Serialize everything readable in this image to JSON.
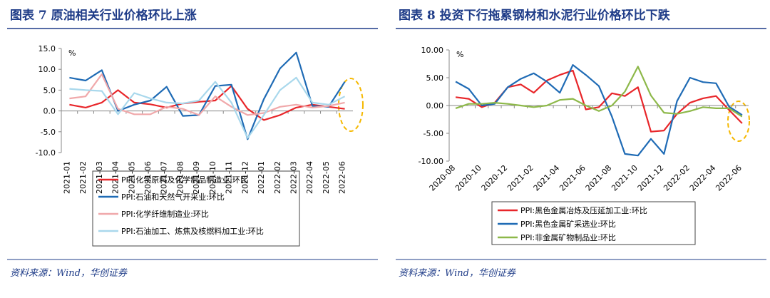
{
  "chart_data": [
    {
      "type": "line",
      "title": "图表 7   原油相关行业价格环比上涨",
      "source": "资料来源：Wind，华创证券",
      "unit": "%",
      "categories": [
        "2021-01",
        "2021-02",
        "2021-03",
        "2021-04",
        "2021-05",
        "2021-06",
        "2021-07",
        "2021-08",
        "2021-09",
        "2021-10",
        "2021-11",
        "2021-12",
        "2022-01",
        "2022-02",
        "2022-03",
        "2022-04",
        "2022-05",
        "2022-06"
      ],
      "ylim": [
        -10,
        15
      ],
      "yticks": [
        {
          "value": -10,
          "label": "-10.0"
        },
        {
          "value": -5,
          "label": "-5.0"
        },
        {
          "value": 0,
          "label": "0.0"
        },
        {
          "value": 5,
          "label": "5.0"
        },
        {
          "value": 10,
          "label": "10.0"
        },
        {
          "value": 15,
          "label": "15.0"
        }
      ],
      "series": [
        {
          "name": "PPI:化学原料及化学制品制造业:环比",
          "color": "#e8262a",
          "values": [
            1.5,
            0.8,
            2.0,
            5.0,
            2.0,
            1.6,
            0.8,
            1.8,
            2.2,
            2.5,
            6.0,
            0.5,
            -2.2,
            -1.0,
            0.8,
            1.5,
            1.0,
            0.5
          ]
        },
        {
          "name": "PPI:石油和天然气开采业:环比",
          "color": "#1f6bb5",
          "values": [
            8.0,
            7.3,
            9.8,
            0.0,
            1.5,
            2.5,
            5.8,
            -1.2,
            -1.0,
            6.0,
            6.3,
            -6.8,
            2.8,
            10.2,
            14.0,
            1.2,
            1.0,
            7.0
          ]
        },
        {
          "name": "PPI:化学纤维制造业:环比",
          "color": "#f0a8aa",
          "values": [
            3.0,
            3.5,
            8.8,
            0.5,
            -0.8,
            -0.8,
            1.0,
            0.5,
            -1.0,
            3.5,
            1.0,
            -1.0,
            -0.5,
            1.0,
            1.5,
            0.8,
            1.2,
            2.0
          ]
        },
        {
          "name": "PPI:石油加工、炼焦及核燃料加工业:环比",
          "color": "#a9d8ec",
          "values": [
            5.3,
            5.0,
            4.8,
            -0.8,
            4.3,
            3.0,
            2.0,
            1.8,
            2.5,
            7.0,
            2.0,
            -6.5,
            -1.0,
            5.0,
            8.0,
            2.0,
            1.5,
            3.5
          ]
        }
      ]
    },
    {
      "type": "line",
      "title": "图表 8   投资下行拖累钢材和水泥行业价格环比下跌",
      "source": "资料来源：Wind，华创证券",
      "unit": "%",
      "categories": [
        "2020-08",
        null,
        "2020-10",
        null,
        "2020-12",
        null,
        "2021-02",
        null,
        "2021-04",
        null,
        "2021-06",
        null,
        "2021-08",
        null,
        "2021-10",
        null,
        "2021-12",
        null,
        "2022-02",
        null,
        "2022-04",
        null,
        "2022-06"
      ],
      "ylim": [
        -10,
        10
      ],
      "yticks": [
        {
          "value": -10,
          "label": "-10.00"
        },
        {
          "value": -5,
          "label": "-5.00"
        },
        {
          "value": 0,
          "label": "0.00"
        },
        {
          "value": 5,
          "label": "5.00"
        },
        {
          "value": 10,
          "label": "10.00"
        }
      ],
      "series": [
        {
          "name": "PPI:黑色金属冶炼及压延加工业:环比",
          "color": "#e8262a",
          "values": [
            1.5,
            1.2,
            -0.3,
            0.5,
            3.3,
            3.8,
            2.3,
            4.5,
            5.5,
            6.3,
            -0.7,
            -0.3,
            2.2,
            1.7,
            3.3,
            -4.7,
            -4.5,
            -1.5,
            0.5,
            1.3,
            1.7,
            -0.8,
            -3.2
          ]
        },
        {
          "name": "PPI:黑色金属矿采选业:环比",
          "color": "#1f6bb5",
          "values": [
            4.3,
            3.0,
            0.0,
            0.3,
            3.3,
            4.8,
            5.8,
            4.3,
            2.3,
            7.3,
            5.5,
            3.5,
            -2.0,
            -8.7,
            -9.0,
            -6.0,
            -8.7,
            0.8,
            5.0,
            4.2,
            4.0,
            -0.2,
            -1.7
          ]
        },
        {
          "name": "PPI:非金属矿物制品业:环比",
          "color": "#8db849",
          "values": [
            -0.5,
            0.3,
            0.3,
            0.5,
            0.3,
            0.0,
            -0.3,
            0.0,
            1.0,
            1.2,
            0.0,
            -1.0,
            0.0,
            2.5,
            7.0,
            1.8,
            -1.3,
            -1.5,
            -1.0,
            -0.3,
            -0.5,
            -0.5,
            -2.0
          ]
        }
      ]
    }
  ]
}
